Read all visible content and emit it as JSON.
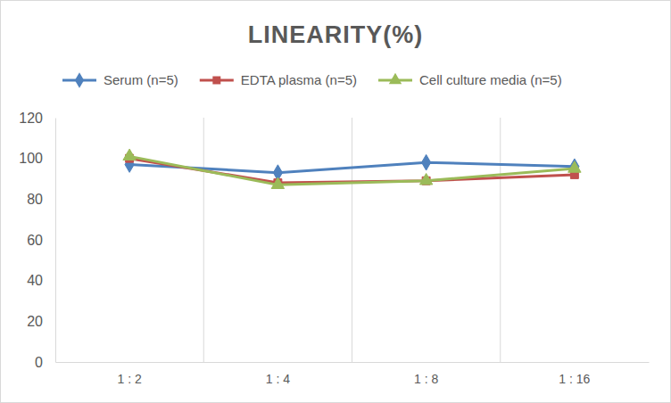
{
  "chart_data": {
    "type": "line",
    "title": "LINEARITY(%)",
    "categories": [
      "1 : 2",
      "1 : 4",
      "1 : 8",
      "1 : 16"
    ],
    "series": [
      {
        "name": "Serum (n=5)",
        "color": "#4F81BD",
        "marker": "diamond",
        "values": [
          97,
          93,
          98,
          96
        ]
      },
      {
        "name": "EDTA plasma (n=5)",
        "color": "#C0504D",
        "marker": "square",
        "values": [
          100,
          88,
          89,
          92
        ]
      },
      {
        "name": "Cell culture media (n=5)",
        "color": "#9BBB59",
        "marker": "triangle",
        "values": [
          101,
          87,
          89,
          95
        ]
      }
    ],
    "ylim": [
      0,
      120
    ],
    "yticks": [
      0,
      20,
      40,
      60,
      80,
      100,
      120
    ],
    "grid": true,
    "legend": "top"
  }
}
